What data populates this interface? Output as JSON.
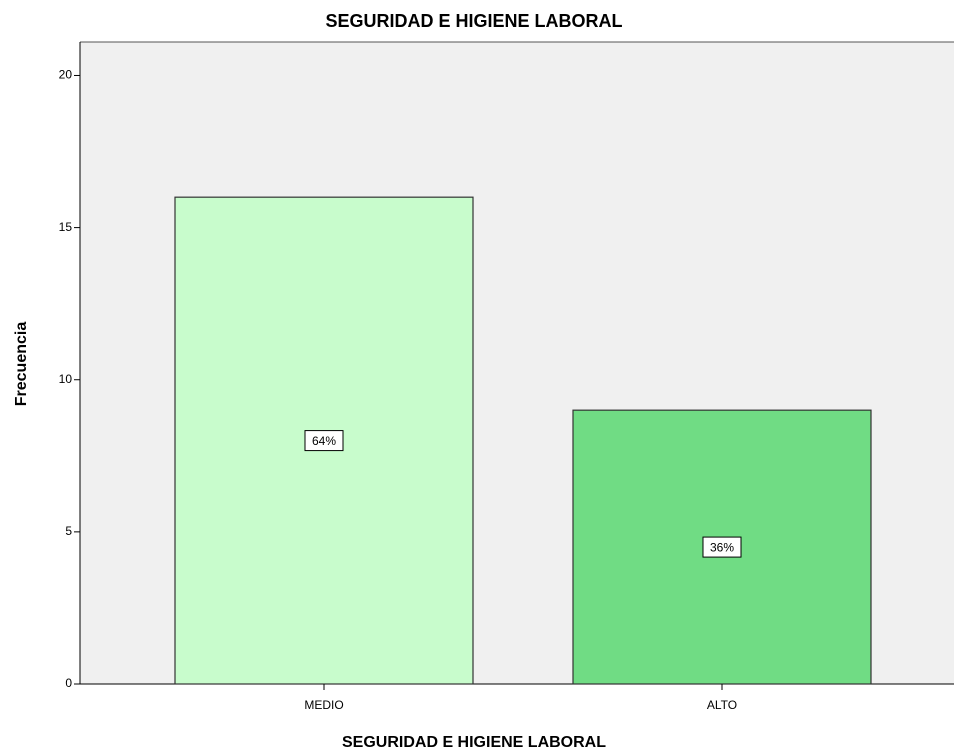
{
  "chart_data": {
    "type": "bar",
    "title": "SEGURIDAD E HIGIENE LABORAL",
    "x_label": "SEGURIDAD E HIGIENE LABORAL",
    "y_label": "Frecuencia",
    "categories": [
      "MEDIO",
      "ALTO"
    ],
    "values": [
      16,
      9
    ],
    "colors": [
      "#c8fccc",
      "#70dc84"
    ],
    "percentages": {
      "values": [
        64,
        36
      ],
      "value_labels": [
        "64%",
        "36%"
      ]
    },
    "ylim": [
      0,
      21.1
    ],
    "yticks": [
      0,
      5,
      10,
      15,
      20
    ],
    "grid": false
  }
}
